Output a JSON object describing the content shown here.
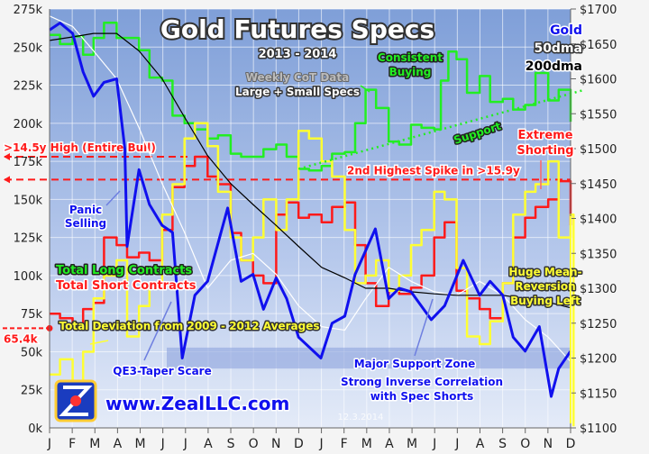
{
  "chart_data": {
    "type": "line",
    "title": "Gold Futures Specs",
    "subtitle": "2013 - 2014",
    "note_lines": [
      "Weekly CoT Data",
      "Large + Small Specs"
    ],
    "date_stamp": "12.3.2014",
    "x_range": [
      "2013-01-01",
      "2014-12-01"
    ],
    "x_tick_labels": [
      "J",
      "F",
      "M",
      "A",
      "M",
      "J",
      "J",
      "A",
      "S",
      "O",
      "N",
      "D",
      "J",
      "F",
      "M",
      "A",
      "M",
      "J",
      "J",
      "A",
      "S",
      "O",
      "N",
      "D"
    ],
    "y_left": {
      "range": [
        0,
        275
      ],
      "unit": "k",
      "tick_labels": [
        "0k",
        "25k",
        "50k",
        "75k",
        "100k",
        "125k",
        "150k",
        "175k",
        "200k",
        "225k",
        "250k",
        "275k"
      ]
    },
    "y_right": {
      "range": [
        1100,
        1700
      ],
      "tick_labels": [
        "$1100",
        "$1150",
        "$1200",
        "$1250",
        "$1300",
        "$1350",
        "$1400",
        "$1450",
        "$1500",
        "$1550",
        "$1600",
        "$1650",
        "$1700"
      ]
    },
    "grid": true,
    "legend": {
      "left": [
        {
          "label": "Total Long Contracts",
          "color": "#22ee22"
        },
        {
          "label": "Total Short Contracts",
          "color": "#ff1a1a"
        },
        {
          "label": "Total Deviation from 2009 - 2012 Averages",
          "color": "#ffff33"
        }
      ],
      "right": [
        {
          "label": "Gold",
          "color": "#1010ee"
        },
        {
          "label": "50dma",
          "color": "#ffffff"
        },
        {
          "label": "200dma",
          "color": "#000000"
        }
      ]
    },
    "series": [
      {
        "name": "Total Long Contracts",
        "axis": "left",
        "color": "#22ee22",
        "points": [
          [
            "2013-01-01",
            258
          ],
          [
            "2013-01-15",
            252
          ],
          [
            "2013-02-01",
            257
          ],
          [
            "2013-02-15",
            245
          ],
          [
            "2013-03-01",
            256
          ],
          [
            "2013-03-15",
            266
          ],
          [
            "2013-04-01",
            256
          ],
          [
            "2013-04-15",
            256
          ],
          [
            "2013-05-01",
            248
          ],
          [
            "2013-05-15",
            230
          ],
          [
            "2013-06-01",
            228
          ],
          [
            "2013-06-15",
            205
          ],
          [
            "2013-07-01",
            200
          ],
          [
            "2013-07-15",
            196
          ],
          [
            "2013-08-01",
            190
          ],
          [
            "2013-08-15",
            192
          ],
          [
            "2013-09-01",
            180
          ],
          [
            "2013-09-15",
            178
          ],
          [
            "2013-10-01",
            178
          ],
          [
            "2013-10-15",
            183
          ],
          [
            "2013-11-01",
            186
          ],
          [
            "2013-11-15",
            178
          ],
          [
            "2013-12-01",
            170
          ],
          [
            "2013-12-15",
            169
          ],
          [
            "2014-01-01",
            172
          ],
          [
            "2014-01-15",
            180
          ],
          [
            "2014-02-01",
            181
          ],
          [
            "2014-02-15",
            200
          ],
          [
            "2014-03-01",
            222
          ],
          [
            "2014-03-15",
            210
          ],
          [
            "2014-04-01",
            188
          ],
          [
            "2014-04-15",
            186
          ],
          [
            "2014-05-01",
            199
          ],
          [
            "2014-05-15",
            197
          ],
          [
            "2014-06-01",
            196
          ],
          [
            "2014-06-10",
            228
          ],
          [
            "2014-06-20",
            247
          ],
          [
            "2014-07-01",
            242
          ],
          [
            "2014-07-15",
            220
          ],
          [
            "2014-08-01",
            231
          ],
          [
            "2014-08-15",
            214
          ],
          [
            "2014-09-01",
            216
          ],
          [
            "2014-09-15",
            209
          ],
          [
            "2014-10-01",
            212
          ],
          [
            "2014-10-15",
            233
          ],
          [
            "2014-11-01",
            215
          ],
          [
            "2014-11-15",
            222
          ],
          [
            "2014-12-01",
            201
          ]
        ]
      },
      {
        "name": "Total Short Contracts",
        "axis": "left",
        "color": "#ff1a1a",
        "points": [
          [
            "2013-01-01",
            75
          ],
          [
            "2013-01-15",
            72
          ],
          [
            "2013-02-01",
            68
          ],
          [
            "2013-02-15",
            78
          ],
          [
            "2013-03-01",
            82
          ],
          [
            "2013-03-15",
            125
          ],
          [
            "2013-04-01",
            120
          ],
          [
            "2013-04-15",
            112
          ],
          [
            "2013-05-01",
            115
          ],
          [
            "2013-05-15",
            110
          ],
          [
            "2013-06-01",
            130
          ],
          [
            "2013-06-15",
            158
          ],
          [
            "2013-07-01",
            172
          ],
          [
            "2013-07-15",
            178
          ],
          [
            "2013-08-01",
            165
          ],
          [
            "2013-08-15",
            160
          ],
          [
            "2013-09-01",
            128
          ],
          [
            "2013-09-15",
            110
          ],
          [
            "2013-10-01",
            100
          ],
          [
            "2013-10-15",
            95
          ],
          [
            "2013-11-01",
            140
          ],
          [
            "2013-11-15",
            148
          ],
          [
            "2013-12-01",
            138
          ],
          [
            "2013-12-15",
            140
          ],
          [
            "2014-01-01",
            135
          ],
          [
            "2014-01-15",
            145
          ],
          [
            "2014-02-01",
            148
          ],
          [
            "2014-02-15",
            120
          ],
          [
            "2014-03-01",
            95
          ],
          [
            "2014-03-15",
            80
          ],
          [
            "2014-04-01",
            90
          ],
          [
            "2014-04-15",
            88
          ],
          [
            "2014-05-01",
            92
          ],
          [
            "2014-05-15",
            100
          ],
          [
            "2014-06-01",
            125
          ],
          [
            "2014-06-15",
            135
          ],
          [
            "2014-07-01",
            90
          ],
          [
            "2014-07-15",
            85
          ],
          [
            "2014-08-01",
            78
          ],
          [
            "2014-08-15",
            72
          ],
          [
            "2014-09-01",
            95
          ],
          [
            "2014-09-15",
            125
          ],
          [
            "2014-10-01",
            138
          ],
          [
            "2014-10-15",
            145
          ],
          [
            "2014-11-01",
            150
          ],
          [
            "2014-11-15",
            162
          ],
          [
            "2014-12-01",
            133
          ]
        ]
      },
      {
        "name": "Total Deviation from 2009 - 2012 Averages",
        "axis": "left",
        "color": "#ffff33",
        "points": [
          [
            "2013-01-01",
            35
          ],
          [
            "2013-01-15",
            45
          ],
          [
            "2013-02-01",
            5
          ],
          [
            "2013-02-15",
            50
          ],
          [
            "2013-03-01",
            85
          ],
          [
            "2013-03-15",
            100
          ],
          [
            "2013-04-01",
            110
          ],
          [
            "2013-04-15",
            60
          ],
          [
            "2013-05-01",
            80
          ],
          [
            "2013-05-15",
            95
          ],
          [
            "2013-06-01",
            140
          ],
          [
            "2013-06-15",
            160
          ],
          [
            "2013-07-01",
            190
          ],
          [
            "2013-07-15",
            200
          ],
          [
            "2013-08-01",
            185
          ],
          [
            "2013-08-15",
            155
          ],
          [
            "2013-09-01",
            125
          ],
          [
            "2013-09-15",
            110
          ],
          [
            "2013-10-01",
            125
          ],
          [
            "2013-10-15",
            150
          ],
          [
            "2013-11-01",
            130
          ],
          [
            "2013-11-15",
            150
          ],
          [
            "2013-12-01",
            195
          ],
          [
            "2013-12-15",
            190
          ],
          [
            "2014-01-01",
            175
          ],
          [
            "2014-01-15",
            165
          ],
          [
            "2014-02-01",
            130
          ],
          [
            "2014-02-15",
            95
          ],
          [
            "2014-03-01",
            100
          ],
          [
            "2014-03-15",
            110
          ],
          [
            "2014-04-01",
            90
          ],
          [
            "2014-04-15",
            100
          ],
          [
            "2014-05-01",
            120
          ],
          [
            "2014-05-15",
            130
          ],
          [
            "2014-06-01",
            155
          ],
          [
            "2014-06-15",
            150
          ],
          [
            "2014-07-01",
            105
          ],
          [
            "2014-07-15",
            60
          ],
          [
            "2014-08-01",
            55
          ],
          [
            "2014-08-15",
            70
          ],
          [
            "2014-09-01",
            95
          ],
          [
            "2014-09-15",
            140
          ],
          [
            "2014-10-01",
            155
          ],
          [
            "2014-10-15",
            160
          ],
          [
            "2014-11-01",
            175
          ],
          [
            "2014-11-15",
            125
          ],
          [
            "2014-12-01",
            140
          ],
          [
            "2014-12-05",
            1
          ]
        ]
      },
      {
        "name": "Gold",
        "axis": "right",
        "color": "#1010ee",
        "points": [
          [
            "2013-01-01",
            1670
          ],
          [
            "2013-01-15",
            1680
          ],
          [
            "2013-02-01",
            1665
          ],
          [
            "2013-02-15",
            1610
          ],
          [
            "2013-03-01",
            1575
          ],
          [
            "2013-03-15",
            1595
          ],
          [
            "2013-04-01",
            1600
          ],
          [
            "2013-04-12",
            1500
          ],
          [
            "2013-04-15",
            1360
          ],
          [
            "2013-05-01",
            1470
          ],
          [
            "2013-05-15",
            1420
          ],
          [
            "2013-06-01",
            1390
          ],
          [
            "2013-06-15",
            1380
          ],
          [
            "2013-06-28",
            1200
          ],
          [
            "2013-07-15",
            1290
          ],
          [
            "2013-08-01",
            1310
          ],
          [
            "2013-08-28",
            1415
          ],
          [
            "2013-09-15",
            1310
          ],
          [
            "2013-10-01",
            1320
          ],
          [
            "2013-10-15",
            1270
          ],
          [
            "2013-11-01",
            1315
          ],
          [
            "2013-11-15",
            1285
          ],
          [
            "2013-12-01",
            1230
          ],
          [
            "2013-12-31",
            1200
          ],
          [
            "2014-01-15",
            1250
          ],
          [
            "2014-02-01",
            1260
          ],
          [
            "2014-02-15",
            1320
          ],
          [
            "2014-03-14",
            1385
          ],
          [
            "2014-04-01",
            1285
          ],
          [
            "2014-04-15",
            1300
          ],
          [
            "2014-05-01",
            1295
          ],
          [
            "2014-05-28",
            1255
          ],
          [
            "2014-06-15",
            1275
          ],
          [
            "2014-07-10",
            1340
          ],
          [
            "2014-08-01",
            1290
          ],
          [
            "2014-08-15",
            1310
          ],
          [
            "2014-09-01",
            1290
          ],
          [
            "2014-09-15",
            1230
          ],
          [
            "2014-10-01",
            1210
          ],
          [
            "2014-10-20",
            1245
          ],
          [
            "2014-11-05",
            1145
          ],
          [
            "2014-11-15",
            1185
          ],
          [
            "2014-12-01",
            1210
          ]
        ]
      },
      {
        "name": "50dma",
        "axis": "right",
        "color": "#ffffff",
        "points": [
          [
            "2013-01-01",
            1690
          ],
          [
            "2013-02-01",
            1675
          ],
          [
            "2013-03-01",
            1640
          ],
          [
            "2013-04-01",
            1600
          ],
          [
            "2013-05-01",
            1530
          ],
          [
            "2013-06-01",
            1450
          ],
          [
            "2013-07-01",
            1380
          ],
          [
            "2013-08-01",
            1300
          ],
          [
            "2013-09-01",
            1340
          ],
          [
            "2013-10-01",
            1350
          ],
          [
            "2013-11-01",
            1320
          ],
          [
            "2013-12-01",
            1275
          ],
          [
            "2014-01-01",
            1245
          ],
          [
            "2014-02-01",
            1240
          ],
          [
            "2014-03-01",
            1285
          ],
          [
            "2014-04-01",
            1330
          ],
          [
            "2014-05-01",
            1310
          ],
          [
            "2014-06-01",
            1295
          ],
          [
            "2014-07-01",
            1290
          ],
          [
            "2014-08-01",
            1310
          ],
          [
            "2014-09-01",
            1290
          ],
          [
            "2014-10-01",
            1255
          ],
          [
            "2014-11-01",
            1230
          ],
          [
            "2014-12-01",
            1195
          ]
        ]
      },
      {
        "name": "200dma",
        "axis": "right",
        "color": "#000000",
        "points": [
          [
            "2013-01-01",
            1655
          ],
          [
            "2013-02-01",
            1660
          ],
          [
            "2013-03-01",
            1665
          ],
          [
            "2013-04-01",
            1665
          ],
          [
            "2013-05-01",
            1640
          ],
          [
            "2013-06-01",
            1600
          ],
          [
            "2013-07-01",
            1545
          ],
          [
            "2013-08-01",
            1490
          ],
          [
            "2013-09-01",
            1450
          ],
          [
            "2013-10-01",
            1420
          ],
          [
            "2013-11-01",
            1390
          ],
          [
            "2013-12-01",
            1360
          ],
          [
            "2014-01-01",
            1330
          ],
          [
            "2014-02-01",
            1315
          ],
          [
            "2014-03-01",
            1300
          ],
          [
            "2014-04-01",
            1300
          ],
          [
            "2014-05-01",
            1295
          ],
          [
            "2014-06-01",
            1292
          ],
          [
            "2014-07-01",
            1290
          ],
          [
            "2014-08-01",
            1290
          ],
          [
            "2014-09-01",
            1290
          ],
          [
            "2014-10-01",
            1285
          ],
          [
            "2014-11-01",
            1280
          ],
          [
            "2014-12-01",
            1272
          ]
        ]
      }
    ],
    "reference_lines": [
      {
        "label": ">14.5y High (Entire Bull)",
        "value": 178,
        "axis": "left",
        "color": "#ff1a1a"
      },
      {
        "label": "2nd Highest Spike in >15.9y",
        "value": 163,
        "axis": "left",
        "color": "#ff1a1a"
      },
      {
        "label": "65.4k",
        "value": 65.4,
        "axis": "left",
        "color": "#ff1a1a"
      }
    ],
    "support_zone": {
      "label": "Major Support Zone",
      "range": [
        1185,
        1215
      ],
      "axis": "right"
    },
    "support_trend": {
      "label": "Support",
      "from": [
        "2013-12-01",
        170
      ],
      "to": [
        "2014-12-20",
        222
      ],
      "axis": "left"
    },
    "annotations": {
      "panic": [
        "Panic",
        "Selling"
      ],
      "consistent": [
        "Consistent",
        "Buying"
      ],
      "extreme": [
        "Extreme",
        "Shorting"
      ],
      "qe3": "QE3-Taper Scare",
      "inverse": [
        "Strong Inverse Correlation",
        "with Spec Shorts"
      ],
      "huge": [
        "Huge Mean-",
        "Reversion",
        "Buying Left"
      ]
    },
    "logo_text": "www.ZealLLC.com"
  }
}
